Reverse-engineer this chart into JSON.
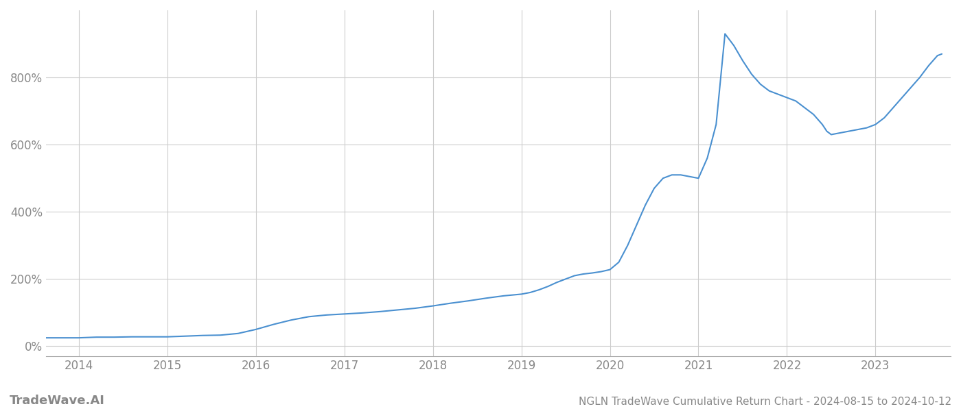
{
  "title": "NGLN TradeWave Cumulative Return Chart - 2024-08-15 to 2024-10-12",
  "watermark": "TradeWave.AI",
  "line_color": "#4a90d0",
  "line_width": 1.5,
  "background_color": "#ffffff",
  "grid_color": "#cccccc",
  "x_years": [
    2014,
    2015,
    2016,
    2017,
    2018,
    2019,
    2020,
    2021,
    2022,
    2023
  ],
  "data_x": [
    2013.63,
    2014.0,
    2014.1,
    2014.2,
    2014.4,
    2014.6,
    2014.8,
    2015.0,
    2015.1,
    2015.2,
    2015.4,
    2015.6,
    2015.8,
    2016.0,
    2016.2,
    2016.4,
    2016.6,
    2016.8,
    2017.0,
    2017.2,
    2017.4,
    2017.6,
    2017.8,
    2018.0,
    2018.2,
    2018.4,
    2018.6,
    2018.8,
    2019.0,
    2019.1,
    2019.2,
    2019.3,
    2019.4,
    2019.5,
    2019.6,
    2019.7,
    2019.8,
    2019.9,
    2020.0,
    2020.1,
    2020.2,
    2020.3,
    2020.4,
    2020.5,
    2020.6,
    2020.7,
    2020.8,
    2020.9,
    2021.0,
    2021.1,
    2021.2,
    2021.3,
    2021.4,
    2021.5,
    2021.6,
    2021.7,
    2021.8,
    2021.9,
    2022.0,
    2022.1,
    2022.2,
    2022.3,
    2022.4,
    2022.45,
    2022.5,
    2022.6,
    2022.7,
    2022.8,
    2022.9,
    2023.0,
    2023.1,
    2023.2,
    2023.3,
    2023.4,
    2023.5,
    2023.6,
    2023.7,
    2023.75
  ],
  "data_y": [
    25,
    25,
    26,
    27,
    27,
    28,
    28,
    28,
    29,
    30,
    32,
    33,
    38,
    50,
    65,
    78,
    88,
    93,
    96,
    99,
    103,
    108,
    113,
    120,
    128,
    135,
    143,
    150,
    155,
    160,
    168,
    178,
    190,
    200,
    210,
    215,
    218,
    222,
    228,
    250,
    300,
    360,
    420,
    470,
    500,
    510,
    510,
    505,
    500,
    560,
    660,
    930,
    895,
    850,
    810,
    780,
    760,
    750,
    740,
    730,
    710,
    690,
    660,
    640,
    630,
    635,
    640,
    645,
    650,
    660,
    680,
    710,
    740,
    770,
    800,
    835,
    865,
    870
  ],
  "ylim": [
    -30,
    1000
  ],
  "yticks": [
    0,
    200,
    400,
    600,
    800
  ],
  "tick_label_color": "#888888",
  "axis_label_fontsize": 12,
  "watermark_fontsize": 13,
  "title_fontsize": 11
}
